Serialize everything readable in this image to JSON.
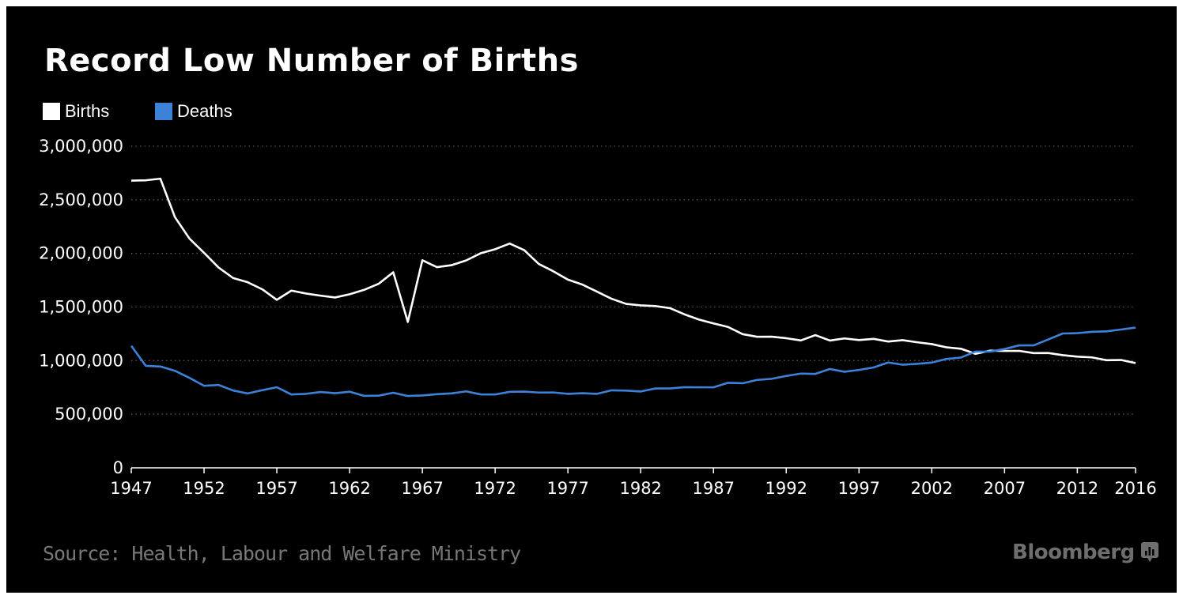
{
  "chart_data": {
    "type": "line",
    "title": "Record Low Number of Births",
    "source": "Source: Health, Labour and Welfare Ministry",
    "branding": "Bloomberg",
    "xlabel": "",
    "ylabel": "",
    "xlim": [
      1947,
      2016
    ],
    "ylim": [
      0,
      3000000
    ],
    "grid": true,
    "legend_position": "top-left",
    "x_ticks": [
      "1947",
      "1952",
      "1957",
      "1962",
      "1967",
      "1972",
      "1977",
      "1982",
      "1987",
      "1992",
      "1997",
      "2002",
      "2007",
      "2012",
      "2016"
    ],
    "y_ticks": [
      "0",
      "500,000",
      "1,000,000",
      "1,500,000",
      "2,000,000",
      "2,500,000",
      "3,000,000"
    ],
    "y_tick_values": [
      0,
      500000,
      1000000,
      1500000,
      2000000,
      2500000,
      3000000
    ],
    "x": [
      1947,
      1948,
      1949,
      1950,
      1951,
      1952,
      1953,
      1954,
      1955,
      1956,
      1957,
      1958,
      1959,
      1960,
      1961,
      1962,
      1963,
      1964,
      1965,
      1966,
      1967,
      1968,
      1969,
      1970,
      1971,
      1972,
      1973,
      1974,
      1975,
      1976,
      1977,
      1978,
      1979,
      1980,
      1981,
      1982,
      1983,
      1984,
      1985,
      1986,
      1987,
      1988,
      1989,
      1990,
      1991,
      1992,
      1993,
      1994,
      1995,
      1996,
      1997,
      1998,
      1999,
      2000,
      2001,
      2002,
      2003,
      2004,
      2005,
      2006,
      2007,
      2008,
      2009,
      2010,
      2011,
      2012,
      2013,
      2014,
      2015,
      2016
    ],
    "series": [
      {
        "name": "Births",
        "color": "#ffffff",
        "values": [
          2679000,
          2682000,
          2697000,
          2338000,
          2138000,
          2005000,
          1868000,
          1770000,
          1731000,
          1665000,
          1567000,
          1653000,
          1626000,
          1606000,
          1589000,
          1619000,
          1660000,
          1717000,
          1824000,
          1361000,
          1936000,
          1872000,
          1890000,
          1934000,
          2001000,
          2039000,
          2092000,
          2030000,
          1901000,
          1833000,
          1755000,
          1709000,
          1643000,
          1577000,
          1529000,
          1515000,
          1509000,
          1490000,
          1432000,
          1383000,
          1347000,
          1314000,
          1247000,
          1222000,
          1223000,
          1209000,
          1188000,
          1238000,
          1187000,
          1207000,
          1192000,
          1203000,
          1178000,
          1191000,
          1171000,
          1154000,
          1124000,
          1111000,
          1063000,
          1093000,
          1090000,
          1091000,
          1070000,
          1071000,
          1051000,
          1037000,
          1030000,
          1004000,
          1006000,
          977000
        ]
      },
      {
        "name": "Deaths",
        "color": "#3d82d9",
        "values": [
          1138000,
          951000,
          945000,
          905000,
          839000,
          765000,
          773000,
          721000,
          694000,
          724000,
          752000,
          684000,
          690000,
          707000,
          696000,
          710000,
          671000,
          673000,
          700000,
          670000,
          675000,
          687000,
          694000,
          713000,
          685000,
          684000,
          709000,
          711000,
          702000,
          703000,
          690000,
          696000,
          690000,
          723000,
          720000,
          712000,
          740000,
          740000,
          752000,
          751000,
          751000,
          793000,
          789000,
          820000,
          830000,
          857000,
          879000,
          876000,
          922000,
          896000,
          913000,
          936000,
          982000,
          962000,
          970000,
          982000,
          1015000,
          1029000,
          1084000,
          1084000,
          1108000,
          1142000,
          1142000,
          1197000,
          1253000,
          1256000,
          1268000,
          1273000,
          1290000,
          1308000
        ]
      }
    ]
  }
}
